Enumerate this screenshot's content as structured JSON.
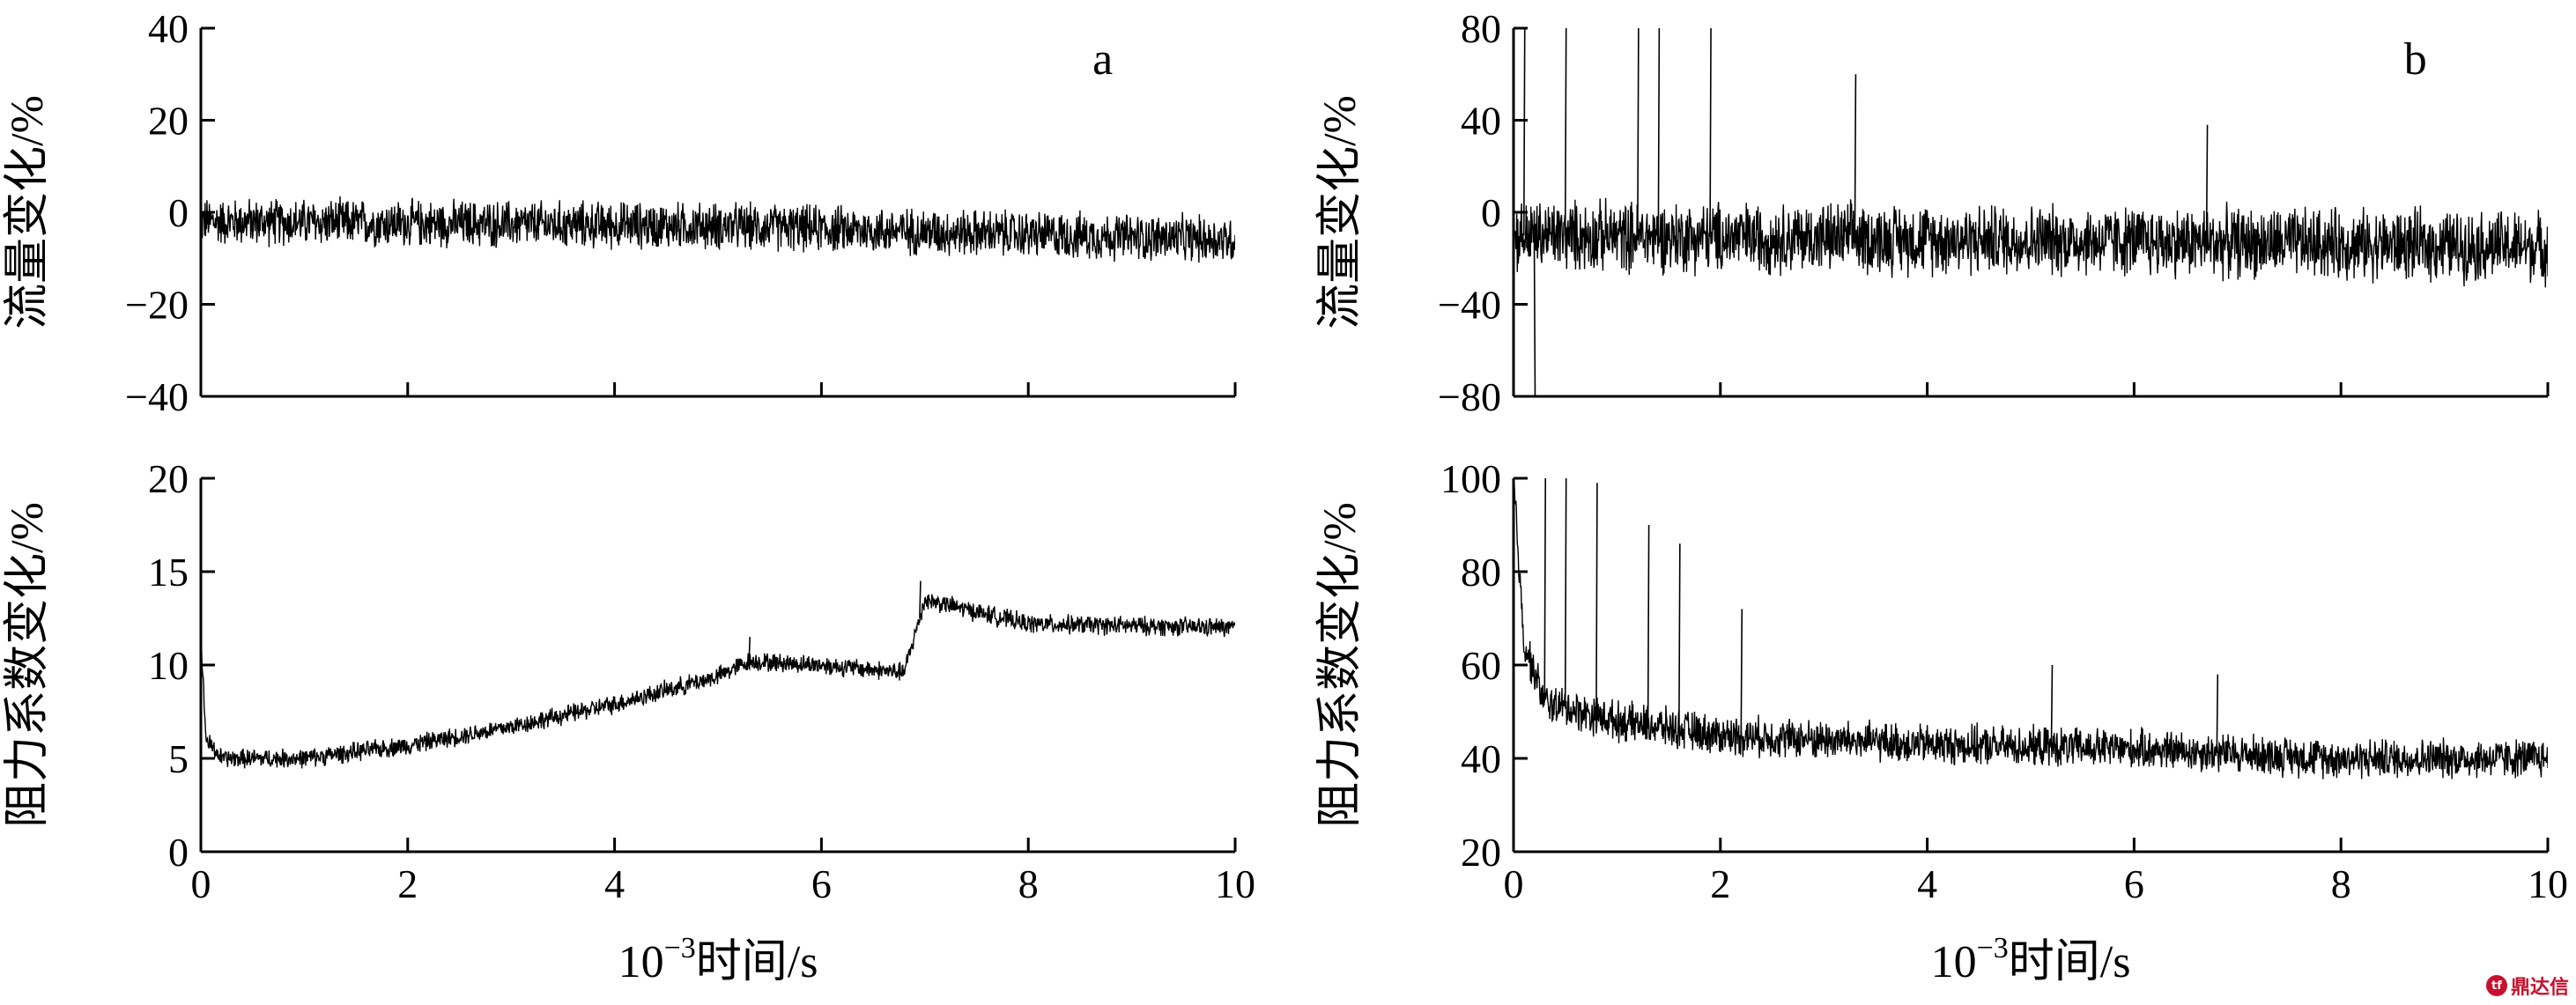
{
  "chart_data": [
    {
      "id": "a-top",
      "type": "line",
      "panel_label": "a",
      "ylabel": "流量变化/%",
      "ylim": [
        -40,
        40
      ],
      "yticks": [
        -40,
        -20,
        0,
        20,
        40
      ],
      "xlim": [
        0,
        10
      ],
      "xticks": [
        0,
        2,
        4,
        6,
        8,
        10
      ],
      "show_xtick_labels": false,
      "xlabel": "",
      "signal": {
        "kind": "noise",
        "base": [
          [
            0,
            -2
          ],
          [
            5,
            -3
          ],
          [
            10,
            -6
          ]
        ],
        "amplitude": 6,
        "spikes": []
      }
    },
    {
      "id": "b-top",
      "type": "line",
      "panel_label": "b",
      "ylabel": "流量变化/%",
      "ylim": [
        -80,
        80
      ],
      "yticks": [
        -80,
        -40,
        0,
        40,
        80
      ],
      "xlim": [
        0,
        10
      ],
      "xticks": [
        0,
        2,
        4,
        6,
        8,
        10
      ],
      "show_xtick_labels": false,
      "xlabel": "",
      "signal": {
        "kind": "noise",
        "base": [
          [
            0,
            -10
          ],
          [
            5,
            -12
          ],
          [
            10,
            -15
          ]
        ],
        "amplitude": 18,
        "spikes": [
          [
            0.1,
            80
          ],
          [
            0.2,
            -80
          ],
          [
            0.5,
            80
          ],
          [
            1.2,
            80
          ],
          [
            1.4,
            80
          ],
          [
            1.9,
            80
          ],
          [
            3.3,
            60
          ],
          [
            6.7,
            38
          ]
        ]
      }
    },
    {
      "id": "a-bottom",
      "type": "line",
      "panel_label": "",
      "ylabel": "阻力系数变化/%",
      "ylim": [
        0,
        20
      ],
      "yticks": [
        0,
        5,
        10,
        15,
        20
      ],
      "xlim": [
        0,
        10
      ],
      "xticks": [
        0,
        2,
        4,
        6,
        8,
        10
      ],
      "show_xtick_labels": true,
      "xlabel_prefix": "10",
      "xlabel_exp": "−3",
      "xlabel_suffix": "时间/s",
      "signal": {
        "kind": "noise",
        "base": [
          [
            0,
            11.5
          ],
          [
            0.05,
            6
          ],
          [
            0.2,
            5
          ],
          [
            1,
            5
          ],
          [
            2,
            5.7
          ],
          [
            3,
            6.7
          ],
          [
            4,
            7.9
          ],
          [
            5,
            9.4
          ],
          [
            5.3,
            10.2
          ],
          [
            6,
            10
          ],
          [
            6.8,
            9.6
          ],
          [
            7,
            13.5
          ],
          [
            8,
            12.2
          ],
          [
            10,
            12
          ]
        ],
        "amplitude": 0.6,
        "spikes": [
          [
            5.3,
            11.5
          ],
          [
            6.95,
            14.5
          ]
        ]
      }
    },
    {
      "id": "b-bottom",
      "type": "line",
      "panel_label": "",
      "ylabel": "阻力系数变化/%",
      "ylim": [
        20,
        100
      ],
      "yticks": [
        20,
        40,
        60,
        80,
        100
      ],
      "xlim": [
        0,
        10
      ],
      "xticks": [
        0,
        2,
        4,
        6,
        8,
        10
      ],
      "show_xtick_labels": true,
      "xlabel_prefix": "10",
      "xlabel_exp": "−3",
      "xlabel_suffix": "时间/s",
      "signal": {
        "kind": "noise",
        "base": [
          [
            0,
            100
          ],
          [
            0.1,
            65
          ],
          [
            0.3,
            52
          ],
          [
            1,
            48
          ],
          [
            2,
            45
          ],
          [
            4,
            43
          ],
          [
            6,
            42
          ],
          [
            8,
            40
          ],
          [
            10,
            40
          ]
        ],
        "amplitude": 5,
        "spikes": [
          [
            0.3,
            100
          ],
          [
            0.5,
            100
          ],
          [
            0.8,
            99
          ],
          [
            1.3,
            90
          ],
          [
            1.6,
            86
          ],
          [
            2.2,
            72
          ],
          [
            5.2,
            60
          ],
          [
            6.8,
            58
          ]
        ]
      }
    }
  ],
  "watermark": {
    "text": "鼎达信",
    "logo": "tf"
  }
}
